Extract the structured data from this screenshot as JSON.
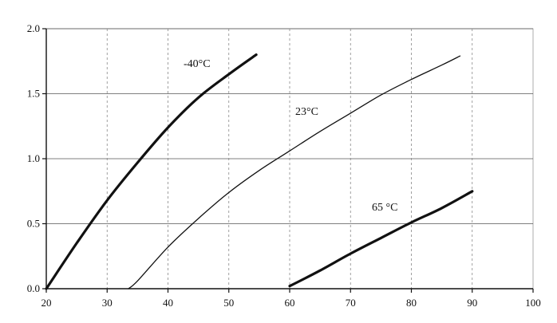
{
  "chart_data": {
    "type": "line",
    "title": "",
    "xlabel": "",
    "ylabel": "",
    "xlim": [
      20,
      100
    ],
    "ylim": [
      0,
      2.0
    ],
    "x_ticks": [
      "20",
      "30",
      "40",
      "50",
      "60",
      "70",
      "80",
      "90",
      "100"
    ],
    "y_ticks": [
      "0.0",
      "0.5",
      "1.0",
      "1.5",
      "2.0"
    ],
    "grid": {
      "horizontal": "solid",
      "vertical": "dashed"
    },
    "legend": "none",
    "series": [
      {
        "name": "-40°C",
        "color": "#111111",
        "weight": "thick",
        "points": [
          [
            20,
            0
          ],
          [
            25,
            0.35
          ],
          [
            30,
            0.68
          ],
          [
            35,
            0.97
          ],
          [
            40,
            1.24
          ],
          [
            45,
            1.47
          ],
          [
            50,
            1.65
          ],
          [
            54.5,
            1.8
          ]
        ]
      },
      {
        "name": "23°C",
        "color": "#111111",
        "weight": "thin",
        "points": [
          [
            33.5,
            0
          ],
          [
            35,
            0.06
          ],
          [
            40,
            0.32
          ],
          [
            45,
            0.54
          ],
          [
            50,
            0.74
          ],
          [
            55,
            0.91
          ],
          [
            60,
            1.06
          ],
          [
            65,
            1.21
          ],
          [
            70,
            1.35
          ],
          [
            75,
            1.49
          ],
          [
            80,
            1.61
          ],
          [
            85,
            1.72
          ],
          [
            88,
            1.79
          ]
        ]
      },
      {
        "name": "65 °C",
        "color": "#111111",
        "weight": "thick",
        "points": [
          [
            60,
            0.02
          ],
          [
            65,
            0.14
          ],
          [
            70,
            0.27
          ],
          [
            75,
            0.39
          ],
          [
            80,
            0.51
          ],
          [
            85,
            0.62
          ],
          [
            90,
            0.75
          ]
        ]
      }
    ],
    "annotations": [
      {
        "text": "-40°C",
        "series": 0
      },
      {
        "text": "23°C",
        "series": 1
      },
      {
        "text": "65 °C",
        "series": 2
      }
    ]
  }
}
